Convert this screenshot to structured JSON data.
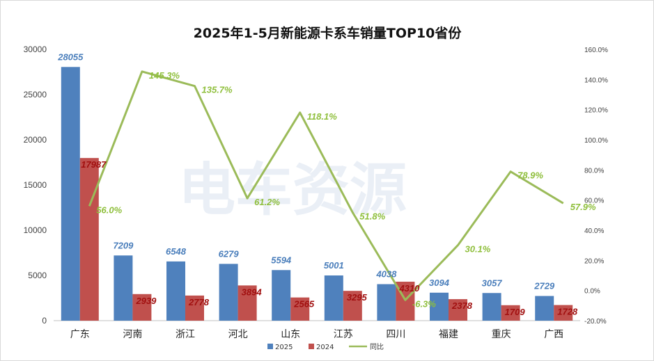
{
  "chart_data": {
    "type": "bar",
    "title": "2025年1-5月新能源卡系车销量TOP10省份",
    "categories": [
      "广东",
      "河南",
      "浙江",
      "河北",
      "山东",
      "江苏",
      "四川",
      "福建",
      "重庆",
      "广西"
    ],
    "series": [
      {
        "name": "2025",
        "type": "bar",
        "color": "#4f81bd",
        "values": [
          28055,
          7209,
          6548,
          6279,
          5594,
          5001,
          4038,
          3094,
          3057,
          2729
        ]
      },
      {
        "name": "2024",
        "type": "bar",
        "color": "#c0504d",
        "values": [
          17987,
          2939,
          2778,
          3894,
          2565,
          3295,
          4310,
          2378,
          1709,
          1728
        ]
      },
      {
        "name": "同比",
        "type": "line",
        "axis": "right",
        "color": "#9bbb59",
        "values": [
          56.0,
          145.3,
          135.7,
          61.2,
          118.1,
          51.8,
          -6.3,
          30.1,
          78.9,
          57.9
        ]
      }
    ],
    "yoy_labels": [
      "56.0%",
      "145.3%",
      "135.7%",
      "61.2%",
      "118.1%",
      "51.8%",
      "-6.3%",
      "30.1%",
      "78.9%",
      "57.9%"
    ],
    "ylim_left": [
      0,
      30000
    ],
    "yticks_left": [
      "0",
      "5000",
      "10000",
      "15000",
      "20000",
      "25000",
      "30000"
    ],
    "ylim_right": [
      -20,
      160
    ],
    "yticks_right": [
      "-20.0%",
      "0.0%",
      "20.0%",
      "40.0%",
      "60.0%",
      "80.0%",
      "100.0%",
      "120.0%",
      "140.0%",
      "160.0%"
    ],
    "grid": false,
    "legend_position": "bottom",
    "watermark": "电车资源"
  }
}
